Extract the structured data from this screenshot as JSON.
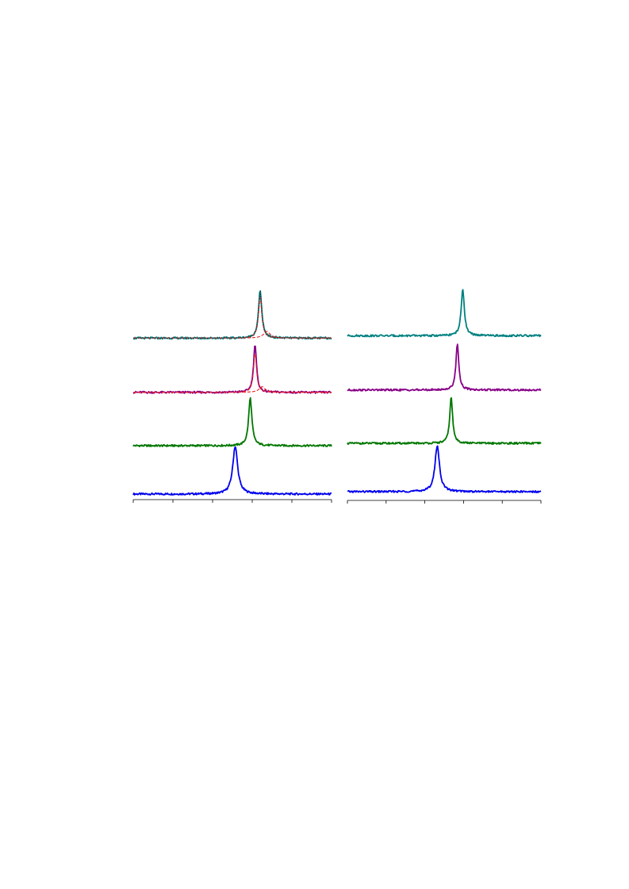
{
  "chart_data": [
    {
      "type": "line",
      "panel": "left",
      "title": "",
      "xlabel": "",
      "ylabel": "",
      "xlim": [
        0,
        5
      ],
      "xticks": [
        0,
        1,
        2,
        3,
        4,
        5
      ],
      "tick_labels_shown": false,
      "grid": false,
      "legend": "none",
      "series": [
        {
          "color": "#0000ee",
          "offset": 0.0,
          "peak_x": 2.57,
          "width": 0.075,
          "amplitude": 1.0,
          "style": "solid"
        },
        {
          "color": "#007700",
          "offset": 1.07,
          "peak_x": 2.95,
          "width": 0.05,
          "amplitude": 1.0,
          "style": "solid"
        },
        {
          "color": "#880088",
          "offset": 2.25,
          "peak_x": 3.07,
          "width": 0.045,
          "amplitude": 1.0,
          "style": "solid"
        },
        {
          "color": "#ee2222",
          "offset": 2.25,
          "peak_x": 3.07,
          "width": 0.045,
          "amplitude": 0.82,
          "style": "dashed",
          "component": true
        },
        {
          "color": "#ee2222",
          "offset": 2.25,
          "peak_x": 3.25,
          "width": 0.09,
          "amplitude": 0.12,
          "style": "dashed",
          "component": true
        },
        {
          "color": "#008080",
          "offset": 3.45,
          "peak_x": 3.2,
          "width": 0.05,
          "amplitude": 1.0,
          "style": "solid"
        },
        {
          "color": "#ee2222",
          "offset": 3.45,
          "peak_x": 3.2,
          "width": 0.05,
          "amplitude": 0.85,
          "style": "dashed",
          "component": true
        },
        {
          "color": "#ee2222",
          "offset": 3.45,
          "peak_x": 3.37,
          "width": 0.1,
          "amplitude": 0.14,
          "style": "dashed",
          "component": true
        },
        {
          "color": "#333333",
          "offset": 3.45,
          "peak_x": 3.2,
          "width": 0.05,
          "amplitude": 0.98,
          "style": "dotted",
          "component": true
        }
      ]
    },
    {
      "type": "line",
      "panel": "right",
      "title": "",
      "xlabel": "",
      "ylabel": "",
      "xlim": [
        0,
        5
      ],
      "xticks": [
        0,
        1,
        2,
        3,
        4,
        5
      ],
      "tick_labels_shown": false,
      "grid": false,
      "legend": "none",
      "series": [
        {
          "color": "#0000ee",
          "offset": 0.0,
          "peak_x": 2.32,
          "width": 0.07,
          "amplitude": 1.0,
          "style": "solid"
        },
        {
          "color": "#007700",
          "offset": 1.07,
          "peak_x": 2.68,
          "width": 0.045,
          "amplitude": 1.0,
          "style": "solid"
        },
        {
          "color": "#880088",
          "offset": 2.25,
          "peak_x": 2.84,
          "width": 0.045,
          "amplitude": 1.0,
          "style": "solid"
        },
        {
          "color": "#008080",
          "offset": 3.45,
          "peak_x": 2.98,
          "width": 0.05,
          "amplitude": 1.0,
          "style": "solid"
        }
      ]
    }
  ]
}
